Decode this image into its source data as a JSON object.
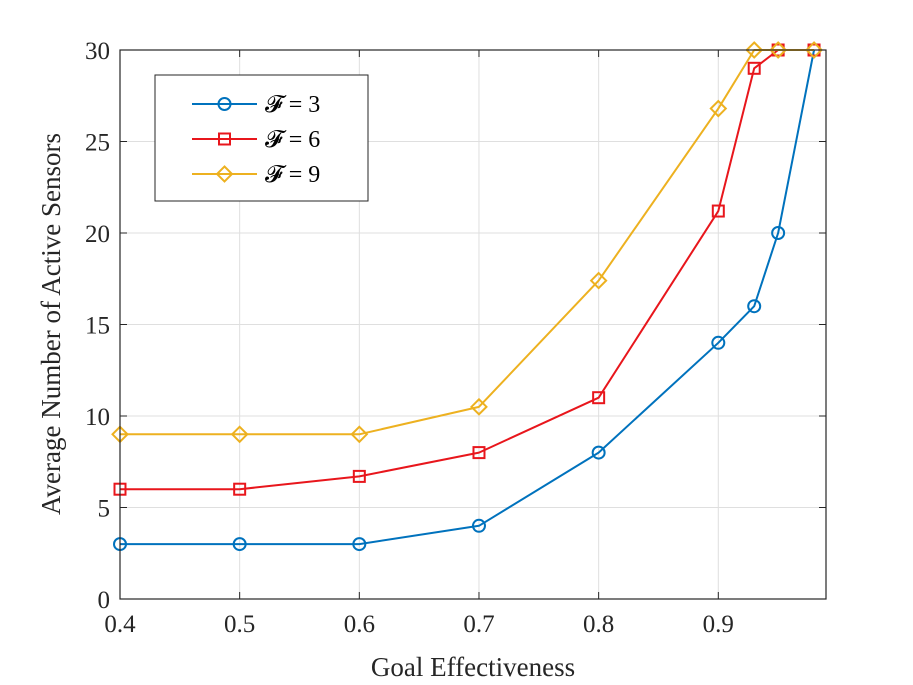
{
  "chart_data": {
    "type": "line",
    "xlabel": "Goal Effectiveness",
    "ylabel": "Average Number of Active Sensors",
    "xlim": [
      0.4,
      0.99
    ],
    "ylim": [
      0,
      30
    ],
    "xticks": [
      0.4,
      0.5,
      0.6,
      0.7,
      0.8,
      0.9
    ],
    "yticks": [
      0,
      5,
      10,
      15,
      20,
      25,
      30
    ],
    "xtick_labels": [
      "0.4",
      "0.5",
      "0.6",
      "0.7",
      "0.8",
      "0.9"
    ],
    "ytick_labels": [
      "0",
      "5",
      "10",
      "15",
      "20",
      "25",
      "30"
    ],
    "grid": true,
    "legend_position": "top-left",
    "x": [
      0.4,
      0.5,
      0.6,
      0.7,
      0.8,
      0.9,
      0.93,
      0.95,
      0.98
    ],
    "series": [
      {
        "name": "𝓕 = 3",
        "color": "#0072BD",
        "marker": "circle",
        "values": [
          3,
          3,
          3,
          4,
          8,
          14,
          16,
          20,
          30
        ]
      },
      {
        "name": "𝓕 = 6",
        "color": "#E8161C",
        "marker": "square",
        "values": [
          6,
          6,
          6.7,
          8,
          11,
          21.2,
          29,
          30,
          30
        ]
      },
      {
        "name": "𝓕 = 9",
        "color": "#EDB120",
        "marker": "diamond",
        "values": [
          9,
          9,
          9,
          10.5,
          17.4,
          26.8,
          30,
          30,
          30
        ]
      }
    ]
  }
}
